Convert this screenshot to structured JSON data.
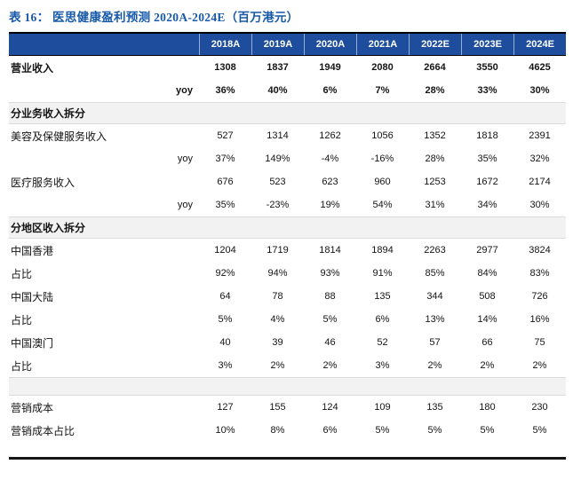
{
  "title": "表 16：  医思健康盈利预测 2020A-2024E（百万港元）",
  "colors": {
    "title_blue": "#1759A9",
    "header_bg": "#1D4D9C",
    "header_text": "#FFFFFF",
    "section_bg": "#F2F2F2",
    "rule_black": "#161616"
  },
  "table": {
    "columns": [
      "2018A",
      "2019A",
      "2020A",
      "2021A",
      "2022E",
      "2023E",
      "2024E"
    ],
    "rows": [
      {
        "type": "data",
        "bold": true,
        "label": "营业收入",
        "sublabel": "",
        "values": [
          "1308",
          "1837",
          "1949",
          "2080",
          "2664",
          "3550",
          "4625"
        ]
      },
      {
        "type": "data",
        "bold": true,
        "label": "",
        "sublabel": "yoy",
        "values": [
          "36%",
          "40%",
          "6%",
          "7%",
          "28%",
          "33%",
          "30%"
        ]
      },
      {
        "type": "section",
        "label": "分业务收入拆分"
      },
      {
        "type": "data",
        "bold": false,
        "label": "美容及保健服务收入",
        "sublabel": "",
        "values": [
          "527",
          "1314",
          "1262",
          "1056",
          "1352",
          "1818",
          "2391"
        ]
      },
      {
        "type": "data",
        "bold": false,
        "label": "",
        "sublabel": "yoy",
        "values": [
          "37%",
          "149%",
          "-4%",
          "-16%",
          "28%",
          "35%",
          "32%"
        ]
      },
      {
        "type": "data",
        "bold": false,
        "label": "医疗服务收入",
        "sublabel": "",
        "values": [
          "676",
          "523",
          "623",
          "960",
          "1253",
          "1672",
          "2174"
        ]
      },
      {
        "type": "data",
        "bold": false,
        "label": "",
        "sublabel": "yoy",
        "values": [
          "35%",
          "-23%",
          "19%",
          "54%",
          "31%",
          "34%",
          "30%"
        ]
      },
      {
        "type": "section",
        "label": "分地区收入拆分"
      },
      {
        "type": "data",
        "bold": false,
        "label": "中国香港",
        "sublabel": "",
        "values": [
          "1204",
          "1719",
          "1814",
          "1894",
          "2263",
          "2977",
          "3824"
        ]
      },
      {
        "type": "data",
        "bold": false,
        "label": "占比",
        "sublabel": "",
        "values": [
          "92%",
          "94%",
          "93%",
          "91%",
          "85%",
          "84%",
          "83%"
        ]
      },
      {
        "type": "data",
        "bold": false,
        "label": "中国大陆",
        "sublabel": "",
        "values": [
          "64",
          "78",
          "88",
          "135",
          "344",
          "508",
          "726"
        ]
      },
      {
        "type": "data",
        "bold": false,
        "label": "占比",
        "sublabel": "",
        "values": [
          "5%",
          "4%",
          "5%",
          "6%",
          "13%",
          "14%",
          "16%"
        ]
      },
      {
        "type": "data",
        "bold": false,
        "label": "中国澳门",
        "sublabel": "",
        "values": [
          "40",
          "39",
          "46",
          "52",
          "57",
          "66",
          "75"
        ]
      },
      {
        "type": "data",
        "bold": false,
        "label": "占比",
        "sublabel": "",
        "values": [
          "3%",
          "2%",
          "2%",
          "3%",
          "2%",
          "2%",
          "2%"
        ]
      },
      {
        "type": "spacer"
      },
      {
        "type": "data",
        "bold": false,
        "label": "营销成本",
        "sublabel": "",
        "values": [
          "127",
          "155",
          "124",
          "109",
          "135",
          "180",
          "230"
        ]
      },
      {
        "type": "data",
        "bold": false,
        "label": "营销成本占比",
        "sublabel": "",
        "values": [
          "10%",
          "8%",
          "6%",
          "5%",
          "5%",
          "5%",
          "5%"
        ]
      }
    ]
  }
}
